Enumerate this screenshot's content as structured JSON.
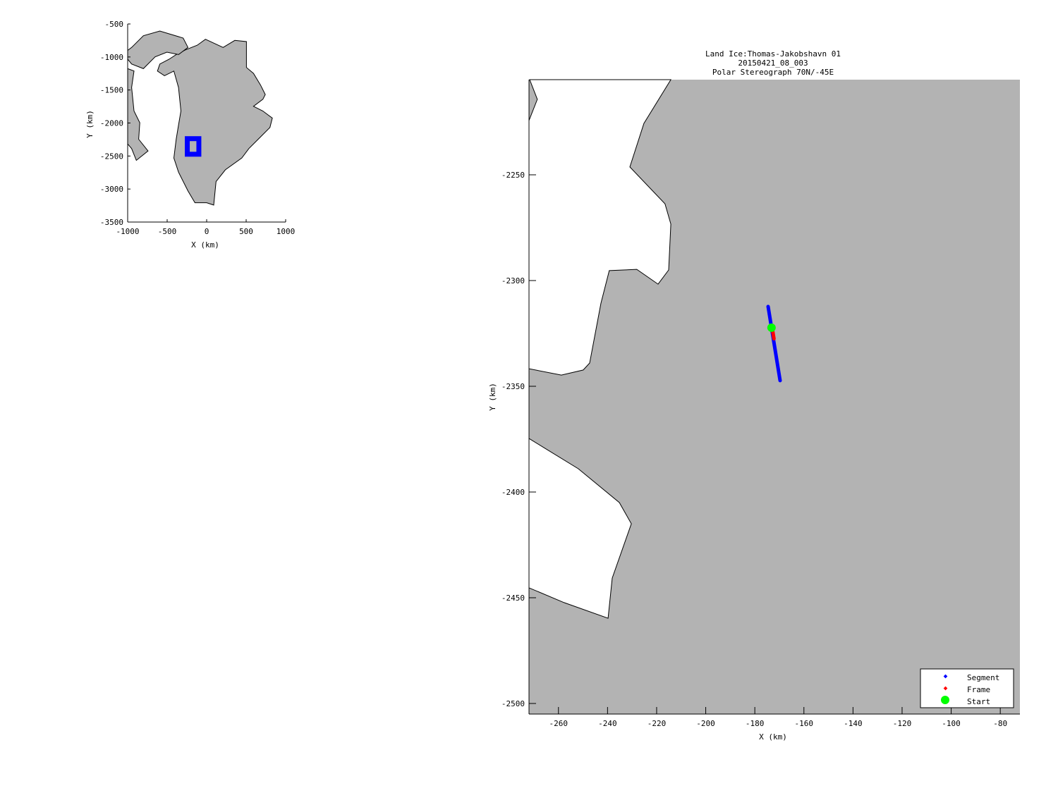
{
  "chart_data": [
    {
      "type": "map",
      "xlabel": "X (km)",
      "ylabel": "Y (km)",
      "xlim": [
        -1000,
        1000
      ],
      "ylim": [
        -3500,
        -500
      ],
      "xticks": [
        -1000,
        -500,
        0,
        500,
        1000
      ],
      "yticks": [
        -500,
        -1000,
        -1500,
        -2000,
        -2500,
        -3000,
        -3500
      ],
      "land_color": "#b3b3b3",
      "box_color": "#0000ff",
      "extent_box": {
        "x": [
          -272,
          -72
        ],
        "y": [
          -2505,
          -2205
        ]
      },
      "land_polygons": [
        [
          [
            -15,
            -732
          ],
          [
            208,
            -856
          ],
          [
            356,
            -749
          ],
          [
            504,
            -767
          ],
          [
            504,
            -1159
          ],
          [
            593,
            -1248
          ],
          [
            682,
            -1426
          ],
          [
            742,
            -1569
          ],
          [
            712,
            -1640
          ],
          [
            593,
            -1747
          ],
          [
            712,
            -1818
          ],
          [
            831,
            -1925
          ],
          [
            801,
            -2068
          ],
          [
            653,
            -2246
          ],
          [
            534,
            -2388
          ],
          [
            445,
            -2531
          ],
          [
            237,
            -2709
          ],
          [
            119,
            -2887
          ],
          [
            89,
            -3243
          ],
          [
            0,
            -3208
          ],
          [
            -148,
            -3208
          ],
          [
            -237,
            -3029
          ],
          [
            -356,
            -2744
          ],
          [
            -415,
            -2531
          ],
          [
            -386,
            -2246
          ],
          [
            -356,
            -2032
          ],
          [
            -326,
            -1818
          ],
          [
            -356,
            -1462
          ],
          [
            -415,
            -1213
          ],
          [
            -534,
            -1284
          ],
          [
            -623,
            -1213
          ],
          [
            -593,
            -1106
          ],
          [
            -475,
            -1034
          ],
          [
            -386,
            -963
          ],
          [
            -267,
            -892
          ],
          [
            -119,
            -821
          ]
        ],
        [
          [
            -950,
            -856
          ],
          [
            -801,
            -678
          ],
          [
            -593,
            -607
          ],
          [
            -297,
            -714
          ],
          [
            -237,
            -856
          ],
          [
            -356,
            -963
          ],
          [
            -504,
            -927
          ],
          [
            -653,
            -999
          ],
          [
            -801,
            -1177
          ],
          [
            -950,
            -1106
          ],
          [
            -1000,
            -1034
          ],
          [
            -1000,
            -900
          ]
        ],
        [
          [
            -1000,
            -1177
          ],
          [
            -920,
            -1212
          ],
          [
            -950,
            -1462
          ],
          [
            -920,
            -1818
          ],
          [
            -846,
            -1996
          ],
          [
            -861,
            -2246
          ],
          [
            -742,
            -2424
          ],
          [
            -890,
            -2566
          ],
          [
            -950,
            -2388
          ],
          [
            -1000,
            -2317
          ]
        ]
      ]
    },
    {
      "type": "map",
      "title": [
        "Land Ice:Thomas-Jakobshavn 01",
        "20150421_08_003",
        "Polar Stereograph 70N/-45E"
      ],
      "xlabel": "X (km)",
      "ylabel": "Y (km)",
      "xlim": [
        -272,
        -72
      ],
      "ylim": [
        -2505,
        -2205
      ],
      "xticks": [
        -260,
        -240,
        -220,
        -200,
        -180,
        -160,
        -140,
        -120,
        -100,
        -80
      ],
      "yticks": [
        -2250,
        -2300,
        -2350,
        -2400,
        -2450,
        -2500
      ],
      "land_color": "#b3b3b3",
      "ocean_polygons": [
        [
          [
            -272,
            -2224.3
          ],
          [
            -268.6,
            -2214.3
          ],
          [
            -271.7,
            -2205
          ],
          [
            -214.2,
            -2205
          ],
          [
            -225.2,
            -2225.7
          ],
          [
            -230.9,
            -2246.3
          ],
          [
            -216.6,
            -2263.7
          ],
          [
            -214.2,
            -2273.3
          ],
          [
            -215.1,
            -2295
          ],
          [
            -219.4,
            -2301.7
          ],
          [
            -228.1,
            -2294.7
          ],
          [
            -239.3,
            -2295.3
          ],
          [
            -242.7,
            -2310.7
          ],
          [
            -247.3,
            -2339
          ],
          [
            -249.9,
            -2342.3
          ],
          [
            -258.8,
            -2344.7
          ],
          [
            -272,
            -2341.7
          ]
        ],
        [
          [
            -272,
            -2374.7
          ],
          [
            -251.9,
            -2389
          ],
          [
            -235.2,
            -2405
          ],
          [
            -230.3,
            -2415
          ],
          [
            -238.1,
            -2440.7
          ],
          [
            -239.8,
            -2459.7
          ],
          [
            -257.7,
            -2452.3
          ],
          [
            -272,
            -2445.3
          ]
        ]
      ],
      "series": [
        {
          "name": "Segment",
          "color": "#0000ff",
          "points": [
            [
              -174.6,
              -2312.3
            ],
            [
              -169.7,
              -2347.3
            ]
          ]
        },
        {
          "name": "Frame",
          "color": "#ff0000",
          "points": [
            [
              -172.8,
              -2323.3
            ],
            [
              -172.2,
              -2327.5
            ]
          ]
        },
        {
          "name": "Start",
          "color": "#00ff00",
          "points": [
            [
              -173.2,
              -2322.3
            ]
          ]
        }
      ],
      "legend": {
        "placement": "bottom-right",
        "entries": [
          "Segment",
          "Frame",
          "Start"
        ]
      }
    }
  ]
}
